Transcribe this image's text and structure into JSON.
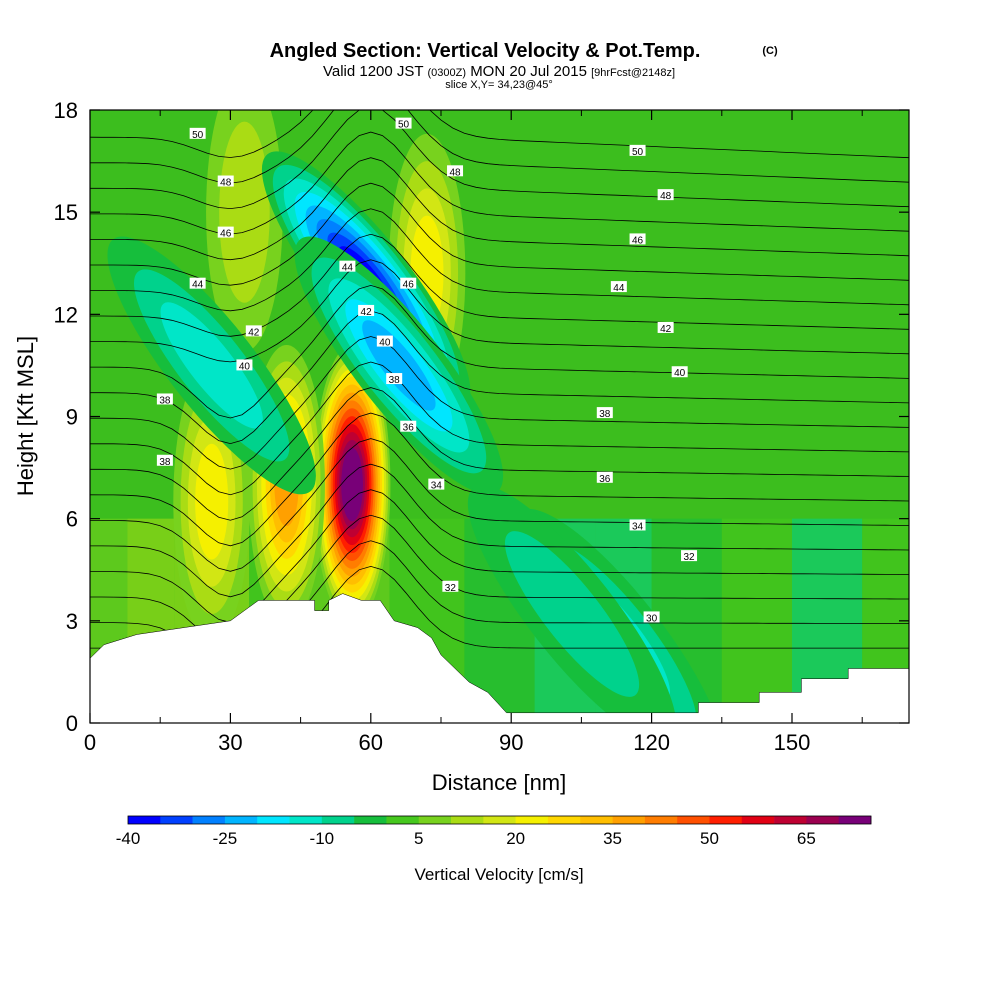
{
  "header": {
    "title": "Angled Section: Vertical Velocity & Pot.Temp.",
    "title_unit": "(C)",
    "valid_prefix": "Valid 1200 JST",
    "valid_utc": "(0300Z)",
    "valid_date": "MON 20 Jul 2015",
    "forecast": "[9hrFcst@2148z]",
    "slice": "slice X,Y= 34,23@45°"
  },
  "chart_data": {
    "type": "heatmap",
    "description_of_fields": [
      "vertical velocity (filled contours)",
      "potential temperature (line contours)"
    ],
    "xlabel": "Distance [nm]",
    "ylabel": "Height [Kft MSL]",
    "xlim": [
      0,
      175
    ],
    "ylim": [
      0,
      18
    ],
    "x_ticks": [
      0,
      30,
      60,
      90,
      120,
      150
    ],
    "y_ticks": [
      0,
      3,
      6,
      9,
      12,
      15,
      18
    ],
    "colorbar": {
      "label": "Vertical Velocity [cm/s]",
      "tick_labels": [
        "-40",
        "-25",
        "-10",
        "5",
        "20",
        "35",
        "50",
        "65"
      ],
      "levels": [
        -40,
        -35,
        -30,
        -25,
        -20,
        -15,
        -10,
        -5,
        0,
        5,
        10,
        15,
        20,
        25,
        30,
        35,
        40,
        45,
        50,
        55,
        60,
        65,
        70,
        75
      ],
      "colors": [
        "#0000ff",
        "#0040ff",
        "#0080ff",
        "#00b4ff",
        "#00e6ff",
        "#00e6c8",
        "#00d28c",
        "#16be3c",
        "#46c81e",
        "#78d21e",
        "#aadc14",
        "#d2e614",
        "#f5f000",
        "#ffd700",
        "#ffbe00",
        "#ffa000",
        "#ff7d00",
        "#ff5000",
        "#ff1e00",
        "#e10014",
        "#be0032",
        "#9b0050",
        "#780078"
      ]
    },
    "terrain_kft": [
      [
        0,
        1.9
      ],
      [
        3,
        2.3
      ],
      [
        10,
        2.6
      ],
      [
        30,
        3.0
      ],
      [
        33,
        3.3
      ],
      [
        36,
        3.6
      ],
      [
        48,
        3.6
      ],
      [
        48,
        3.3
      ],
      [
        51,
        3.3
      ],
      [
        51,
        3.6
      ],
      [
        54,
        3.8
      ],
      [
        58,
        3.6
      ],
      [
        62,
        3.6
      ],
      [
        65,
        3.0
      ],
      [
        70,
        2.8
      ],
      [
        73,
        2.5
      ],
      [
        75,
        2.0
      ],
      [
        78,
        1.6
      ],
      [
        81,
        1.2
      ],
      [
        85,
        0.9
      ],
      [
        87,
        0.6
      ],
      [
        89,
        0.3
      ],
      [
        130,
        0.3
      ],
      [
        130,
        0.6
      ],
      [
        143,
        0.6
      ],
      [
        143,
        0.9
      ],
      [
        152,
        0.9
      ],
      [
        152,
        1.3
      ],
      [
        162,
        1.3
      ],
      [
        162,
        1.6
      ],
      [
        175,
        1.6
      ]
    ],
    "updraft_cores": [
      {
        "x": 56,
        "y": 7.0,
        "peak_cm_s": 75
      },
      {
        "x": 42,
        "y": 7.0,
        "peak_cm_s": 35
      },
      {
        "x": 26,
        "y": 6.5,
        "peak_cm_s": 22
      },
      {
        "x": 72,
        "y": 13.2,
        "peak_cm_s": 22
      },
      {
        "x": 33,
        "y": 15.0,
        "peak_cm_s": 12
      }
    ],
    "downdraft_cores": [
      {
        "x": 59,
        "y": 13.0,
        "peak_cm_s": -40
      },
      {
        "x": 66,
        "y": 10.5,
        "peak_cm_s": -25
      },
      {
        "x": 26,
        "y": 10.5,
        "peak_cm_s": -15
      },
      {
        "x": 113,
        "y": 2.5,
        "peak_cm_s": -15
      },
      {
        "x": 103,
        "y": 3.2,
        "peak_cm_s": -12
      }
    ],
    "theta_labels": [
      {
        "text": "50",
        "x": 23,
        "y": 17.3
      },
      {
        "text": "48",
        "x": 29,
        "y": 15.9
      },
      {
        "text": "46",
        "x": 29,
        "y": 14.4
      },
      {
        "text": "44",
        "x": 23,
        "y": 12.9
      },
      {
        "text": "42",
        "x": 35,
        "y": 11.5
      },
      {
        "text": "40",
        "x": 33,
        "y": 10.5
      },
      {
        "text": "38",
        "x": 16,
        "y": 9.5
      },
      {
        "text": "38",
        "x": 16,
        "y": 7.7
      },
      {
        "text": "44",
        "x": 55,
        "y": 13.4
      },
      {
        "text": "42",
        "x": 59,
        "y": 12.1
      },
      {
        "text": "40",
        "x": 63,
        "y": 11.2
      },
      {
        "text": "38",
        "x": 65,
        "y": 10.1
      },
      {
        "text": "36",
        "x": 68,
        "y": 8.7
      },
      {
        "text": "34",
        "x": 74,
        "y": 7.0
      },
      {
        "text": "32",
        "x": 77,
        "y": 4.0
      },
      {
        "text": "50",
        "x": 67,
        "y": 17.6
      },
      {
        "text": "46",
        "x": 68,
        "y": 12.9
      },
      {
        "text": "48",
        "x": 78,
        "y": 16.2
      },
      {
        "text": "50",
        "x": 117,
        "y": 16.8
      },
      {
        "text": "48",
        "x": 123,
        "y": 15.5
      },
      {
        "text": "46",
        "x": 117,
        "y": 14.2
      },
      {
        "text": "44",
        "x": 113,
        "y": 12.8
      },
      {
        "text": "42",
        "x": 123,
        "y": 11.6
      },
      {
        "text": "40",
        "x": 126,
        "y": 10.3
      },
      {
        "text": "38",
        "x": 110,
        "y": 9.1
      },
      {
        "text": "36",
        "x": 110,
        "y": 7.2
      },
      {
        "text": "34",
        "x": 117,
        "y": 5.8
      },
      {
        "text": "32",
        "x": 128,
        "y": 4.9
      },
      {
        "text": "30",
        "x": 120,
        "y": 3.1
      }
    ],
    "grid": false
  }
}
